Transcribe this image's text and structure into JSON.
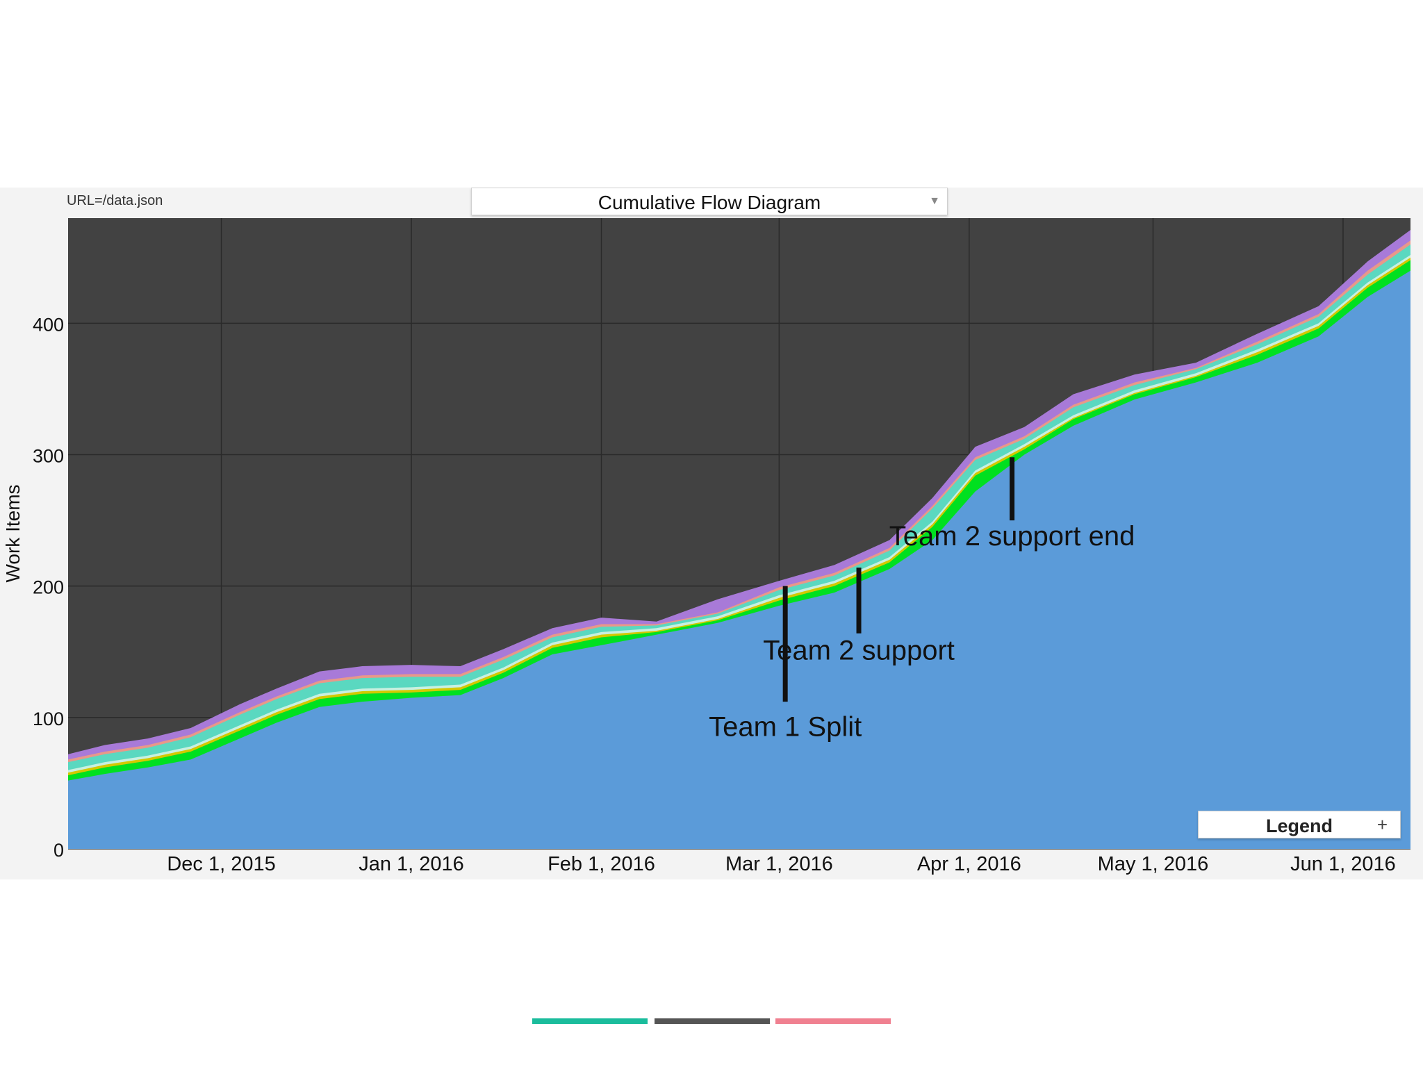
{
  "header": {
    "url_text": "URL=/data.json",
    "view_select": "Cumulative Flow Diagram"
  },
  "legend": {
    "label": "Legend",
    "expand_symbol": "+"
  },
  "slide_bars": {
    "colors": [
      "#1abc9c",
      "#555555",
      "#f08090"
    ]
  },
  "chart_data": {
    "type": "area",
    "stacked": true,
    "ylabel": "Work Items",
    "xlabel": "",
    "ylim": [
      0,
      480
    ],
    "yticks": [
      0,
      100,
      200,
      300,
      400
    ],
    "x_range": [
      "2015-11-06",
      "2016-06-12"
    ],
    "xticks": [
      {
        "date": "2015-12-01",
        "label": "Dec 1, 2015"
      },
      {
        "date": "2016-01-01",
        "label": "Jan 1, 2016"
      },
      {
        "date": "2016-02-01",
        "label": "Feb 1, 2016"
      },
      {
        "date": "2016-03-01",
        "label": "Mar 1, 2016"
      },
      {
        "date": "2016-04-01",
        "label": "Apr 1, 2016"
      },
      {
        "date": "2016-05-01",
        "label": "May 1, 2016"
      },
      {
        "date": "2016-06-01",
        "label": "Jun 1, 2016"
      }
    ],
    "grid": true,
    "background_color": "#424242",
    "x": [
      "2015-11-06",
      "2015-11-12",
      "2015-11-19",
      "2015-11-26",
      "2015-12-04",
      "2015-12-10",
      "2015-12-17",
      "2015-12-24",
      "2016-01-01",
      "2016-01-09",
      "2016-01-16",
      "2016-01-24",
      "2016-02-01",
      "2016-02-10",
      "2016-02-20",
      "2016-03-01",
      "2016-03-10",
      "2016-03-19",
      "2016-03-26",
      "2016-04-02",
      "2016-04-10",
      "2016-04-18",
      "2016-04-28",
      "2016-05-08",
      "2016-05-18",
      "2016-05-28",
      "2016-06-05",
      "2016-06-12"
    ],
    "series": [
      {
        "color": "#5b9bd9",
        "values": [
          52,
          57,
          62,
          68,
          84,
          96,
          108,
          112,
          115,
          117,
          130,
          148,
          155,
          163,
          172,
          185,
          195,
          213,
          235,
          272,
          300,
          322,
          342,
          355,
          370,
          390,
          420,
          440
        ]
      },
      {
        "color": "#00e020",
        "values": [
          4,
          5,
          5,
          6,
          6,
          6,
          6,
          6,
          4,
          4,
          4,
          5,
          6,
          2,
          2,
          4,
          5,
          5,
          10,
          12,
          4,
          5,
          4,
          4,
          6,
          6,
          7,
          8
        ]
      },
      {
        "color": "#d4c800",
        "values": [
          2,
          2,
          2,
          2,
          2,
          2,
          2,
          2,
          2,
          2,
          2,
          2,
          2,
          1,
          1,
          2,
          2,
          2,
          2,
          2,
          2,
          1,
          1,
          1,
          2,
          2,
          2,
          2
        ]
      },
      {
        "color": "#c8f0e0",
        "values": [
          2,
          2,
          2,
          2,
          2,
          2,
          2,
          2,
          2,
          2,
          2,
          2,
          2,
          2,
          2,
          2,
          2,
          2,
          2,
          2,
          2,
          2,
          2,
          2,
          2,
          2,
          2,
          2
        ]
      },
      {
        "color": "#5ad8c0",
        "values": [
          6,
          6,
          6,
          7,
          8,
          8,
          8,
          8,
          8,
          6,
          6,
          4,
          4,
          2,
          2,
          4,
          4,
          5,
          10,
          8,
          4,
          6,
          4,
          3,
          4,
          5,
          6,
          8
        ]
      },
      {
        "color": "#e8988a",
        "values": [
          2,
          2,
          2,
          2,
          2,
          2,
          2,
          2,
          2,
          2,
          2,
          2,
          2,
          1,
          1,
          2,
          2,
          2,
          2,
          2,
          2,
          2,
          2,
          1,
          2,
          2,
          3,
          3
        ]
      },
      {
        "color": "#a87ad8",
        "values": [
          4,
          5,
          5,
          5,
          6,
          6,
          7,
          7,
          7,
          6,
          6,
          5,
          5,
          2,
          10,
          5,
          6,
          6,
          6,
          8,
          7,
          8,
          6,
          4,
          6,
          6,
          7,
          8
        ]
      }
    ],
    "annotations": [
      {
        "text": "Team 1 Split",
        "date": "2016-03-02",
        "line_from": 200,
        "line_to": 112,
        "label_y": 86
      },
      {
        "text": "Team 2 support",
        "date": "2016-03-14",
        "line_from": 214,
        "line_to": 164,
        "label_y": 144
      },
      {
        "text": "Team 2 support end",
        "date": "2016-04-08",
        "line_from": 298,
        "line_to": 250,
        "label_y": 231
      }
    ]
  }
}
